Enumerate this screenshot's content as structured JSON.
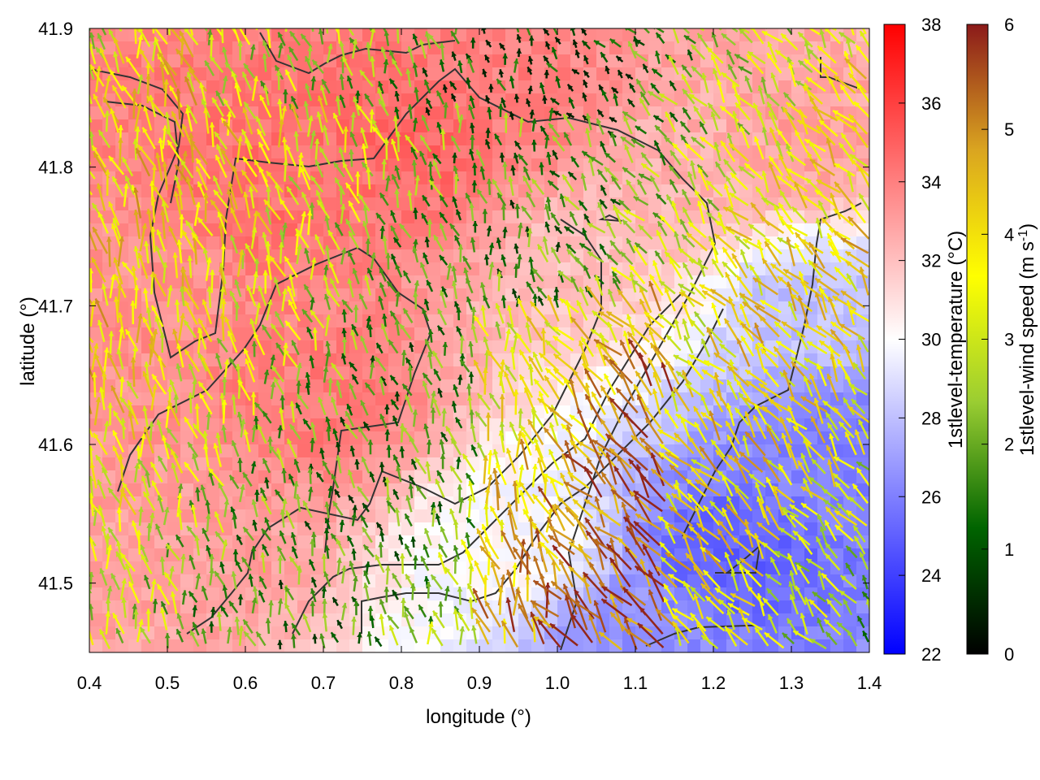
{
  "chart_data": {
    "type": "heatmap",
    "xlabel": "longitude (°)",
    "ylabel": "latitude (°)",
    "xlim": [
      0.4,
      1.4
    ],
    "ylim": [
      41.45,
      41.9
    ],
    "x_ticks": [
      "0.4",
      "0.5",
      "0.6",
      "0.7",
      "0.8",
      "0.9",
      "1.0",
      "1.1",
      "1.2",
      "1.3",
      "1.4"
    ],
    "x_tick_values": [
      0.4,
      0.5,
      0.6,
      0.7,
      0.8,
      0.9,
      1.0,
      1.1,
      1.2,
      1.3,
      1.4
    ],
    "y_ticks": [
      "41.5",
      "41.6",
      "41.7",
      "41.8",
      "41.9"
    ],
    "y_tick_values": [
      41.5,
      41.6,
      41.7,
      41.8,
      41.9
    ],
    "temperature_colorbar": {
      "label": "1stlevel-temperature (°C)",
      "range": [
        22,
        38
      ],
      "ticks": [
        "22",
        "24",
        "26",
        "28",
        "30",
        "32",
        "34",
        "36",
        "38"
      ],
      "tick_values": [
        22,
        24,
        26,
        28,
        30,
        32,
        34,
        36,
        38
      ],
      "colors": [
        "#0000ff",
        "#ffffff",
        "#ff0000"
      ]
    },
    "wind_colorbar": {
      "label_main": "1stlevel-wind speed (m s",
      "label_sup": "-1",
      "label_end": ")",
      "range": [
        0,
        6
      ],
      "ticks": [
        "0",
        "1",
        "2",
        "3",
        "4",
        "5",
        "6"
      ],
      "tick_values": [
        0,
        1,
        2,
        3,
        4,
        5,
        6
      ],
      "colors": [
        "#000000",
        "#006400",
        "#9acd32",
        "#ffff00",
        "#daa520",
        "#8b1a1a"
      ]
    },
    "temperature_regions": [
      {
        "lon": 0.62,
        "lat": 41.78,
        "temp": 34.5
      },
      {
        "lon": 0.82,
        "lat": 41.82,
        "temp": 34.8
      },
      {
        "lon": 0.7,
        "lat": 41.63,
        "temp": 34.2
      },
      {
        "lon": 0.48,
        "lat": 41.72,
        "temp": 33.5
      },
      {
        "lon": 0.95,
        "lat": 41.85,
        "temp": 34.0
      },
      {
        "lon": 0.55,
        "lat": 41.52,
        "temp": 33.0
      },
      {
        "lon": 1.05,
        "lat": 41.74,
        "temp": 32.0
      },
      {
        "lon": 1.18,
        "lat": 41.8,
        "temp": 32.5
      },
      {
        "lon": 1.32,
        "lat": 41.82,
        "temp": 33.0
      },
      {
        "lon": 1.22,
        "lat": 41.52,
        "temp": 25.0
      },
      {
        "lon": 1.35,
        "lat": 41.6,
        "temp": 26.0
      },
      {
        "lon": 1.08,
        "lat": 41.46,
        "temp": 26.5
      },
      {
        "lon": 1.32,
        "lat": 41.7,
        "temp": 28.0
      },
      {
        "lon": 0.95,
        "lat": 41.52,
        "temp": 30.0
      }
    ],
    "wind_field": {
      "direction": "mostly northward / north-westward",
      "speed_range": [
        0,
        6
      ]
    }
  }
}
